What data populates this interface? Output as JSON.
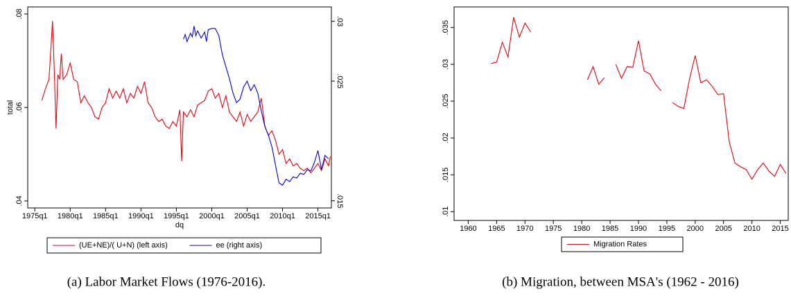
{
  "chart_data": [
    {
      "type": "line",
      "caption": "(a) Labor Market Flows (1976-2016).",
      "x_label": "dq",
      "y_label": "total",
      "xlim": [
        1974,
        2016.9
      ],
      "xticks": [
        {
          "value": 1975,
          "label": "1975q1"
        },
        {
          "value": 1980,
          "label": "1980q1"
        },
        {
          "value": 1985,
          "label": "1985q1"
        },
        {
          "value": 1990,
          "label": "1990q1"
        },
        {
          "value": 1995,
          "label": "1995q1"
        },
        {
          "value": 2000,
          "label": "2000q1"
        },
        {
          "value": 2005,
          "label": "2005q1"
        },
        {
          "value": 2010,
          "label": "2010q1"
        },
        {
          "value": 2015,
          "label": "2015q1"
        }
      ],
      "ylim": [
        0.0385,
        0.0815
      ],
      "yticks": [
        {
          "value": 0.04,
          "label": ".04"
        },
        {
          "value": 0.06,
          "label": ".06"
        },
        {
          "value": 0.08,
          "label": ".08"
        }
      ],
      "y2lim": [
        0.0144,
        0.0312
      ],
      "y2ticks": [
        {
          "value": 0.015,
          "label": ".015"
        },
        {
          "value": 0.025,
          "label": ".025"
        },
        {
          "value": 0.03,
          "label": ".03"
        }
      ],
      "grid": false,
      "legend_position": "bottom",
      "series": [
        {
          "name": "(UE+NE)/( U+N) (left axis)",
          "color": "#e8000b",
          "x": [
            1976.0,
            1976.5,
            1977.0,
            1977.25,
            1977.5,
            1977.75,
            1978.0,
            1978.25,
            1978.5,
            1978.75,
            1979.0,
            1979.5,
            1980.0,
            1980.5,
            1981.0,
            1981.5,
            1982.0,
            1982.5,
            1983.0,
            1983.5,
            1984.0,
            1984.5,
            1985.0,
            1985.5,
            1986.0,
            1986.5,
            1987.0,
            1987.5,
            1988.0,
            1988.5,
            1989.0,
            1989.5,
            1990.0,
            1990.5,
            1991.0,
            1991.5,
            1992.0,
            1992.5,
            1993.0,
            1993.5,
            1994.0,
            1994.5,
            1995.0,
            1995.5,
            1995.75,
            1996.0,
            1996.5,
            1997.0,
            1997.5,
            1998.0,
            1998.5,
            1999.0,
            1999.5,
            2000.0,
            2000.5,
            2001.0,
            2001.5,
            2002.0,
            2002.5,
            2003.0,
            2003.5,
            2004.0,
            2004.5,
            2005.0,
            2005.5,
            2006.0,
            2006.5,
            2007.0,
            2007.5,
            2008.0,
            2008.5,
            2009.0,
            2009.5,
            2010.0,
            2010.5,
            2011.0,
            2011.5,
            2012.0,
            2012.5,
            2013.0,
            2013.5,
            2014.0,
            2014.5,
            2015.0,
            2015.5,
            2016.0,
            2016.5,
            2016.75
          ],
          "values": [
            0.0615,
            0.064,
            0.066,
            0.072,
            0.0785,
            0.068,
            0.0555,
            0.067,
            0.066,
            0.0715,
            0.066,
            0.067,
            0.0695,
            0.066,
            0.0655,
            0.061,
            0.0625,
            0.061,
            0.06,
            0.058,
            0.0575,
            0.06,
            0.061,
            0.064,
            0.062,
            0.0635,
            0.062,
            0.064,
            0.061,
            0.063,
            0.062,
            0.0645,
            0.063,
            0.0655,
            0.061,
            0.06,
            0.058,
            0.057,
            0.0575,
            0.056,
            0.0555,
            0.057,
            0.056,
            0.0595,
            0.0485,
            0.059,
            0.058,
            0.0595,
            0.058,
            0.0605,
            0.061,
            0.0615,
            0.0635,
            0.064,
            0.062,
            0.063,
            0.06,
            0.0625,
            0.059,
            0.058,
            0.057,
            0.059,
            0.056,
            0.0585,
            0.057,
            0.058,
            0.059,
            0.062,
            0.056,
            0.054,
            0.055,
            0.053,
            0.05,
            0.051,
            0.048,
            0.049,
            0.0475,
            0.048,
            0.047,
            0.0465,
            0.047,
            0.046,
            0.047,
            0.048,
            0.0465,
            0.049,
            0.0475,
            0.0495
          ]
        },
        {
          "name": "ee (right axis)",
          "color": "#0000e0",
          "axis": "y2",
          "x": [
            1996.0,
            1996.25,
            1996.5,
            1997.0,
            1997.25,
            1997.5,
            1997.75,
            1998.0,
            1998.5,
            1999.0,
            1999.25,
            1999.5,
            2000.0,
            2000.5,
            2001.0,
            2001.5,
            2002.0,
            2002.5,
            2003.0,
            2003.5,
            2004.0,
            2004.5,
            2005.0,
            2005.5,
            2006.0,
            2006.5,
            2007.0,
            2007.5,
            2008.0,
            2008.5,
            2009.0,
            2009.5,
            2010.0,
            2010.5,
            2011.0,
            2011.5,
            2012.0,
            2012.5,
            2013.0,
            2013.5,
            2014.0,
            2014.5,
            2015.0,
            2015.5,
            2016.0,
            2016.5
          ],
          "values": [
            0.0285,
            0.0289,
            0.0283,
            0.029,
            0.0287,
            0.0296,
            0.0288,
            0.0292,
            0.0286,
            0.0291,
            0.0283,
            0.0293,
            0.0294,
            0.0294,
            0.0288,
            0.0272,
            0.0262,
            0.0252,
            0.024,
            0.0232,
            0.0235,
            0.0245,
            0.025,
            0.0242,
            0.0247,
            0.024,
            0.0225,
            0.0212,
            0.0205,
            0.0195,
            0.018,
            0.0165,
            0.0163,
            0.0168,
            0.0166,
            0.017,
            0.0169,
            0.0173,
            0.0172,
            0.0176,
            0.0175,
            0.0182,
            0.0192,
            0.0176,
            0.0188,
            0.0185
          ]
        }
      ]
    },
    {
      "type": "line",
      "caption": "(b) Migration, between MSA's (1962 - 2016)",
      "xlim": [
        1957.5,
        2016.4
      ],
      "xticks": [
        1960,
        1965,
        1970,
        1975,
        1980,
        1985,
        1990,
        1995,
        2000,
        2005,
        2010,
        2015
      ],
      "ylim": [
        0.0088,
        0.0378
      ],
      "yticks": [
        {
          "value": 0.01,
          "label": ".01"
        },
        {
          "value": 0.015,
          "label": ".015"
        },
        {
          "value": 0.02,
          "label": ".02"
        },
        {
          "value": 0.025,
          "label": ".025"
        },
        {
          "value": 0.03,
          "label": ".03"
        },
        {
          "value": 0.035,
          "label": ".035"
        }
      ],
      "grid": false,
      "legend_position": "bottom",
      "x": [
        1964,
        1965,
        1966,
        1967,
        1968,
        1969,
        1970,
        1971,
        1972,
        1973,
        1974,
        1975,
        1976,
        1977,
        1978,
        1979,
        1980,
        1981,
        1982,
        1983,
        1984,
        1985,
        1986,
        1987,
        1988,
        1989,
        1990,
        1991,
        1992,
        1993,
        1994,
        1995,
        1996,
        1997,
        1998,
        1999,
        2000,
        2001,
        2002,
        2003,
        2004,
        2005,
        2006,
        2007,
        2008,
        2009,
        2010,
        2011,
        2012,
        2013,
        2014,
        2015,
        2016
      ],
      "series": [
        {
          "name": "Migration Rates",
          "color": "#e8000b",
          "values": [
            0.0301,
            0.0303,
            0.033,
            0.031,
            0.0364,
            0.0337,
            0.0356,
            0.0344,
            null,
            null,
            null,
            null,
            null,
            null,
            null,
            null,
            null,
            0.0279,
            0.0297,
            0.0273,
            0.0282,
            null,
            0.03,
            0.0281,
            0.0297,
            0.0296,
            0.0332,
            0.0291,
            0.0287,
            0.0273,
            0.0264,
            null,
            0.0248,
            0.0243,
            0.024,
            0.028,
            0.0312,
            0.0275,
            0.0279,
            0.027,
            0.0259,
            0.026,
            0.0195,
            0.0166,
            0.0161,
            0.0157,
            0.0144,
            0.0157,
            0.0166,
            0.0155,
            0.0148,
            0.0164,
            0.0152
          ]
        }
      ]
    }
  ]
}
